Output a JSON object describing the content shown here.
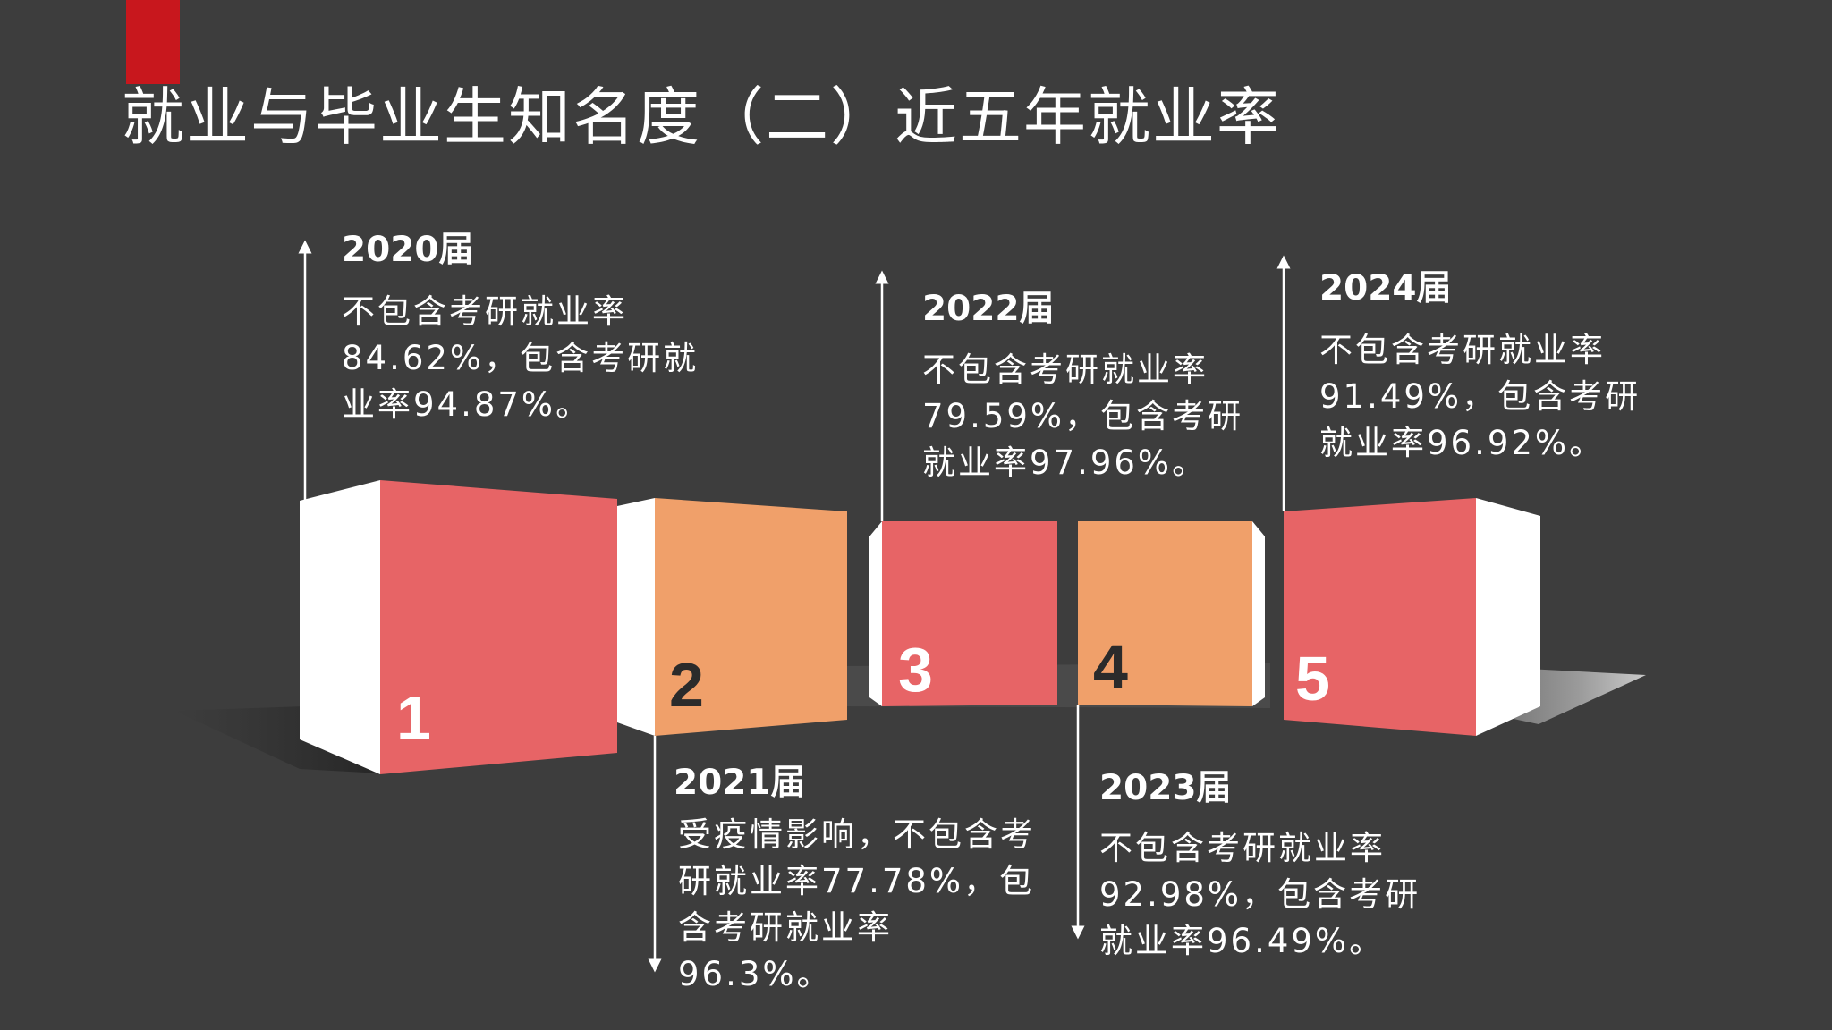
{
  "slide": {
    "title": "就业与毕业生知名度（二）近五年就业率",
    "colors": {
      "background": "#3d3d3d",
      "accent": "#c8171d",
      "red_block": "#e76466",
      "orange_block": "#f0a06a",
      "side_face": "#ffffff"
    }
  },
  "steps": [
    {
      "number": "1",
      "year": "2020届",
      "description": "不包含考研就业率84.62%，包含考研就业率94.87%。"
    },
    {
      "number": "2",
      "year": "2021届",
      "description": "受疫情影响，不包含考研就业率77.78%，包含考研就业率96.3%。"
    },
    {
      "number": "3",
      "year": "2022届",
      "description": "不包含考研就业率79.59%，包含考研就业率97.96%。"
    },
    {
      "number": "4",
      "year": "2023届",
      "description": "不包含考研就业率92.98%，包含考研就业率96.49%。"
    },
    {
      "number": "5",
      "year": "2024届",
      "description": "不包含考研就业率91.49%，包含考研就业率96.92%。"
    }
  ]
}
